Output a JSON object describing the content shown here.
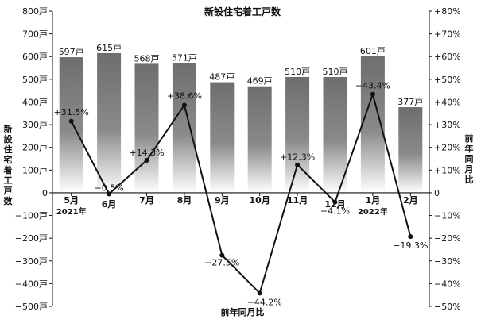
{
  "chart_data": {
    "type": "bar",
    "title": "新設住宅着工戸数",
    "categories": [
      "5月",
      "6月",
      "7月",
      "8月",
      "9月",
      "10月",
      "11月",
      "12月",
      "1月",
      "2月"
    ],
    "year_labels": [
      {
        "category_index": 0,
        "text": "2021年"
      },
      {
        "category_index": 8,
        "text": "2022年"
      }
    ],
    "series": [
      {
        "type": "bar",
        "axis": "left",
        "values": [
          597,
          615,
          568,
          571,
          487,
          469,
          510,
          510,
          601,
          377
        ],
        "labels": [
          "597戸",
          "615戸",
          "568戸",
          "571戸",
          "487戸",
          "469戸",
          "510戸",
          "510戸",
          "601戸",
          "377戸"
        ]
      },
      {
        "type": "line",
        "axis": "right",
        "values": [
          31.5,
          -0.5,
          14.3,
          38.6,
          -27.5,
          -44.2,
          12.3,
          -4.1,
          43.4,
          -19.3
        ],
        "labels": [
          "+31.5%",
          "−0.5%",
          "+14.3%",
          "+38.6%",
          "−27.5%",
          "−44.2%",
          "+12.3%",
          "−4.1%",
          "+43.4%",
          "−19.3%"
        ]
      }
    ],
    "y_left": {
      "label": "新設住宅着工戸数",
      "ylim": [
        -500,
        800
      ],
      "ticks": [
        800,
        700,
        600,
        500,
        400,
        300,
        200,
        100,
        0,
        -100,
        -200,
        -300,
        -400,
        -500
      ],
      "tick_labels": [
        "800戸",
        "700戸",
        "600戸",
        "500戸",
        "400戸",
        "300戸",
        "200戸",
        "100戸",
        "0",
        "−100戸",
        "−200戸",
        "−300戸",
        "−400戸",
        "−500戸"
      ]
    },
    "y_right": {
      "label": "前年同月比",
      "ylim": [
        -50,
        80
      ],
      "ticks": [
        80,
        70,
        60,
        50,
        40,
        30,
        20,
        10,
        0,
        -10,
        -20,
        -30,
        -40,
        -50
      ],
      "tick_labels": [
        "+80%",
        "+70%",
        "+60%",
        "+50%",
        "+40%",
        "+30%",
        "+20%",
        "+10%",
        "0",
        "−10%",
        "−20%",
        "−30%",
        "−40%",
        "−50%"
      ]
    },
    "xlabel": "前年同月比",
    "grid": false,
    "colors": {
      "bar_top": "#6e6e6e",
      "bar_bottom": "#ffffff",
      "line": "#111111"
    }
  }
}
